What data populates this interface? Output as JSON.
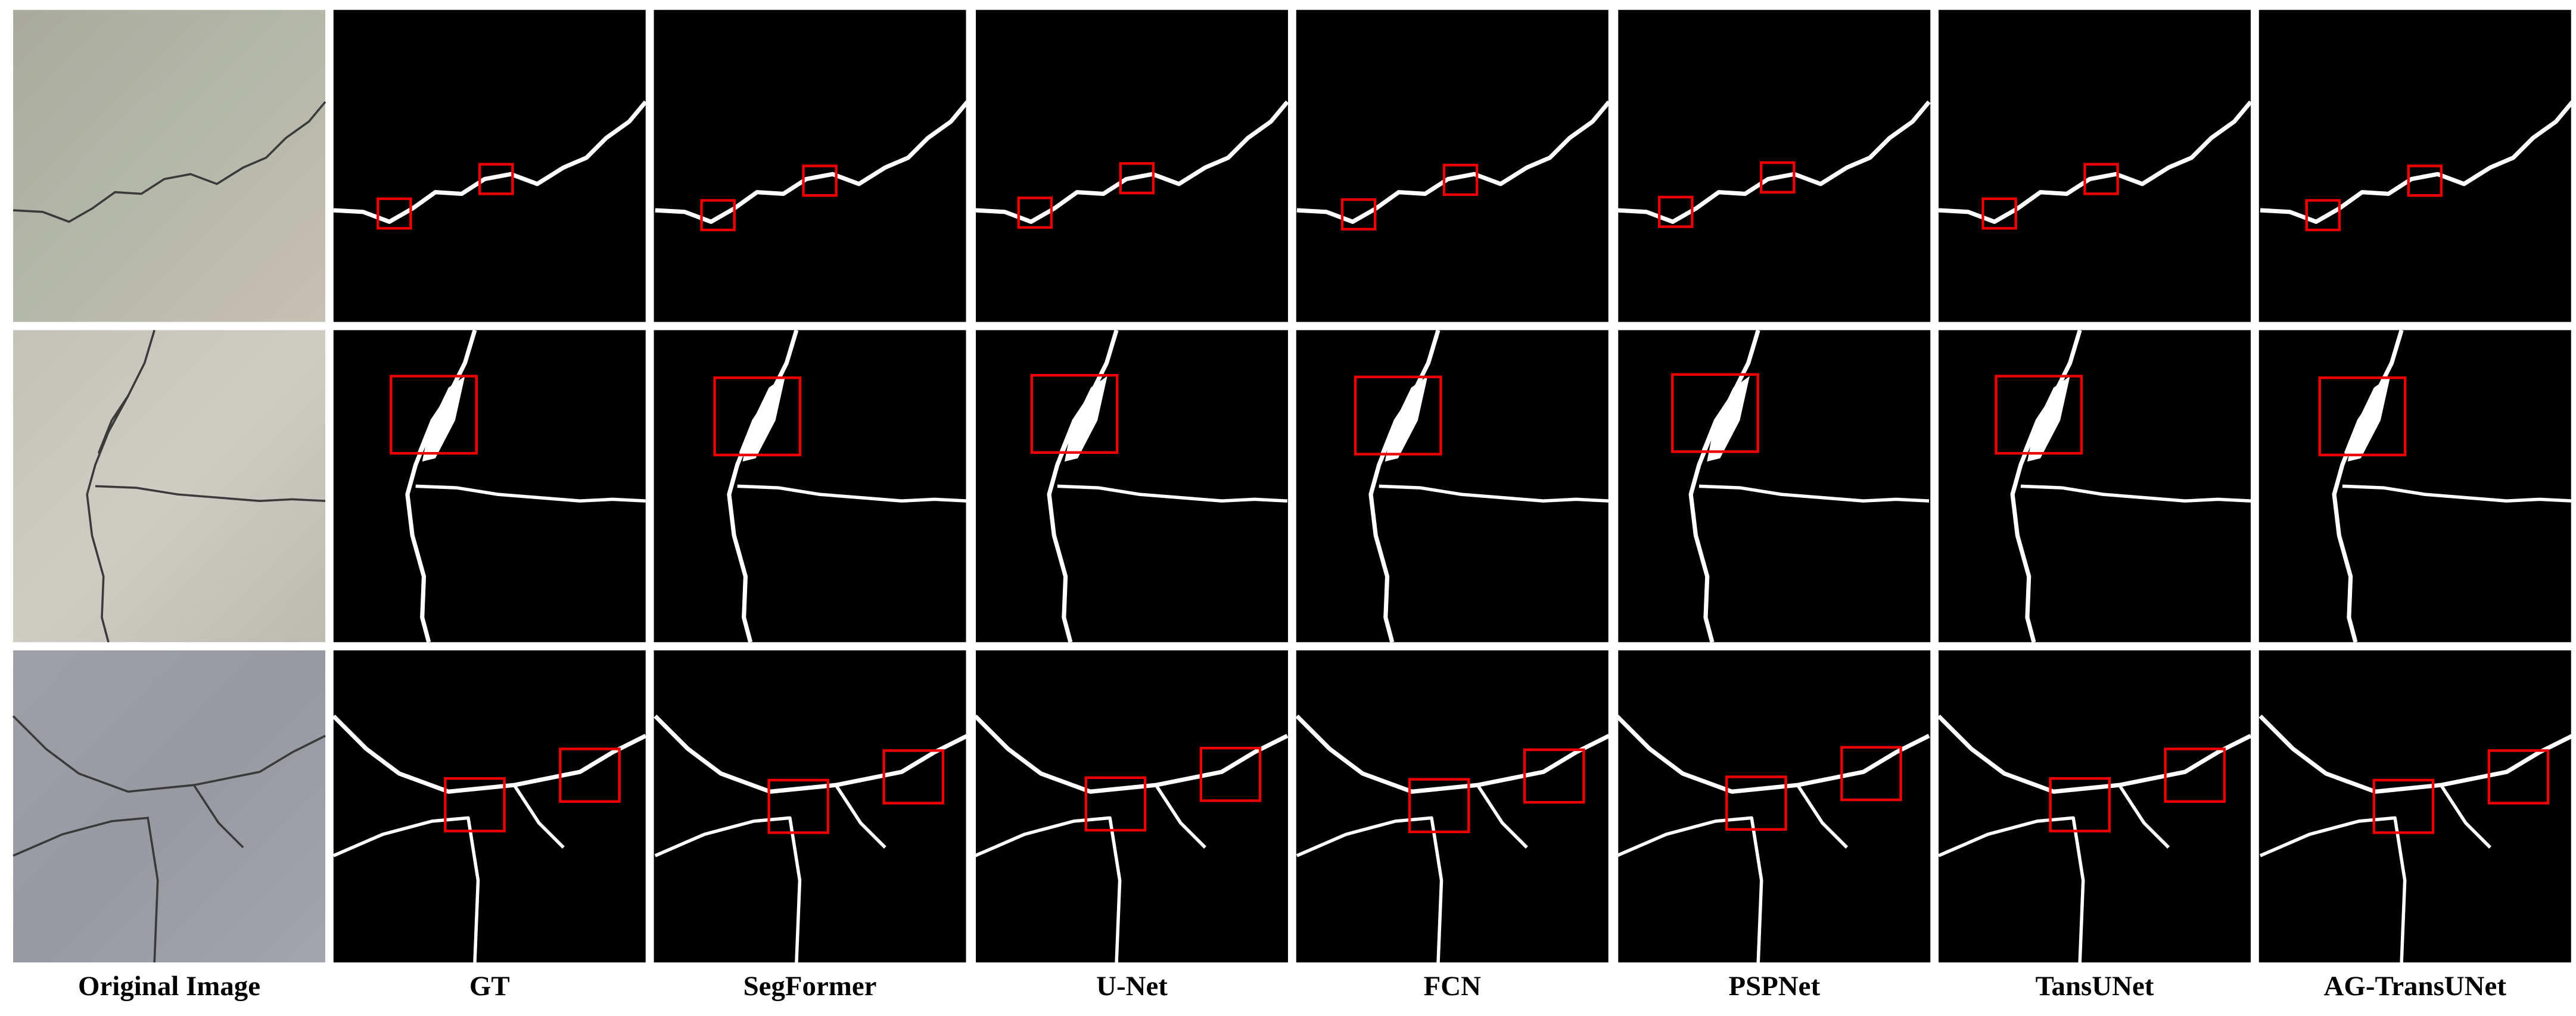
{
  "columns": [
    "Original Image",
    "GT",
    "SegFormer",
    "U-Net",
    "FCN",
    "PSPNet",
    "TansUNet",
    "AG-TransUNet"
  ]
}
